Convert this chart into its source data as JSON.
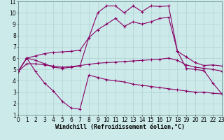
{
  "xlabel": "Windchill (Refroidissement éolien,°C)",
  "xlim": [
    0,
    23
  ],
  "ylim": [
    1,
    11
  ],
  "xticks": [
    0,
    1,
    2,
    3,
    4,
    5,
    6,
    7,
    8,
    9,
    10,
    11,
    12,
    13,
    14,
    15,
    16,
    17,
    18,
    19,
    20,
    21,
    22,
    23
  ],
  "yticks": [
    1,
    2,
    3,
    4,
    5,
    6,
    7,
    8,
    9,
    10,
    11
  ],
  "background_color": "#cceaea",
  "grid_color": "#aacccc",
  "line_color": "#880066",
  "line1_y": [
    4.8,
    6.0,
    4.8,
    3.8,
    3.1,
    2.2,
    1.6,
    1.5,
    4.5,
    4.3,
    4.1,
    4.0,
    3.9,
    3.7,
    3.6,
    3.5,
    3.4,
    3.3,
    3.2,
    3.1,
    3.0,
    3.0,
    2.9,
    2.85
  ],
  "line2_y": [
    4.8,
    6.0,
    5.8,
    5.5,
    5.2,
    5.1,
    5.2,
    5.3,
    7.8,
    10.0,
    10.6,
    10.6,
    10.0,
    10.6,
    10.1,
    10.6,
    10.55,
    10.6,
    6.6,
    5.1,
    5.0,
    4.9,
    3.8,
    2.85
  ],
  "line3_y": [
    4.8,
    6.0,
    6.2,
    6.4,
    6.5,
    6.55,
    6.6,
    6.7,
    7.8,
    8.5,
    9.0,
    9.5,
    8.8,
    9.2,
    9.0,
    9.2,
    9.5,
    9.6,
    6.6,
    6.1,
    5.6,
    5.35,
    5.4,
    5.3
  ],
  "line4_y": [
    4.8,
    5.5,
    5.5,
    5.4,
    5.3,
    5.2,
    5.25,
    5.35,
    5.45,
    5.55,
    5.6,
    5.65,
    5.7,
    5.75,
    5.8,
    5.85,
    5.9,
    6.0,
    5.8,
    5.4,
    5.2,
    5.1,
    5.0,
    4.85
  ],
  "tick_fontsize": 5.5,
  "xlabel_fontsize": 6.0,
  "lw": 0.8,
  "ms": 2.5,
  "mew": 0.8
}
